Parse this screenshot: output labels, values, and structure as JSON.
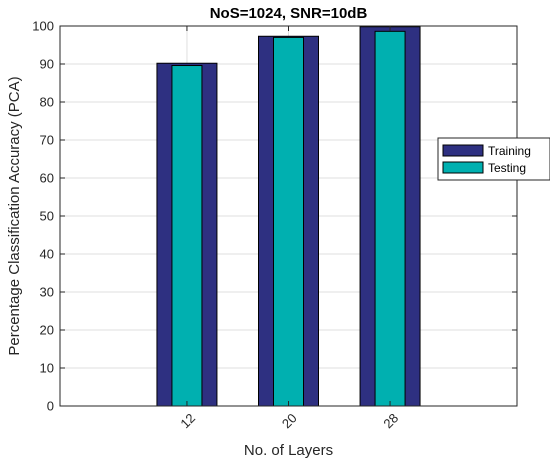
{
  "chart_data": {
    "type": "bar",
    "title": "NoS=1024, SNR=10dB",
    "xlabel": "No. of Layers",
    "ylabel": "Percentage Classification Accuracy (PCA)",
    "categories": [
      "12",
      "20",
      "28"
    ],
    "series": [
      {
        "name": "Training",
        "values": [
          90.2,
          97.3,
          99.8
        ],
        "color": "#2e3081"
      },
      {
        "name": "Testing",
        "values": [
          89.6,
          97.0,
          98.6
        ],
        "color": "#00b0b0"
      }
    ],
    "ylim": [
      0,
      100
    ],
    "yticks": [
      0,
      10,
      20,
      30,
      40,
      50,
      60,
      70,
      80,
      90,
      100
    ],
    "xlim": [
      2,
      38
    ],
    "grid": true,
    "legend_position": "right"
  }
}
